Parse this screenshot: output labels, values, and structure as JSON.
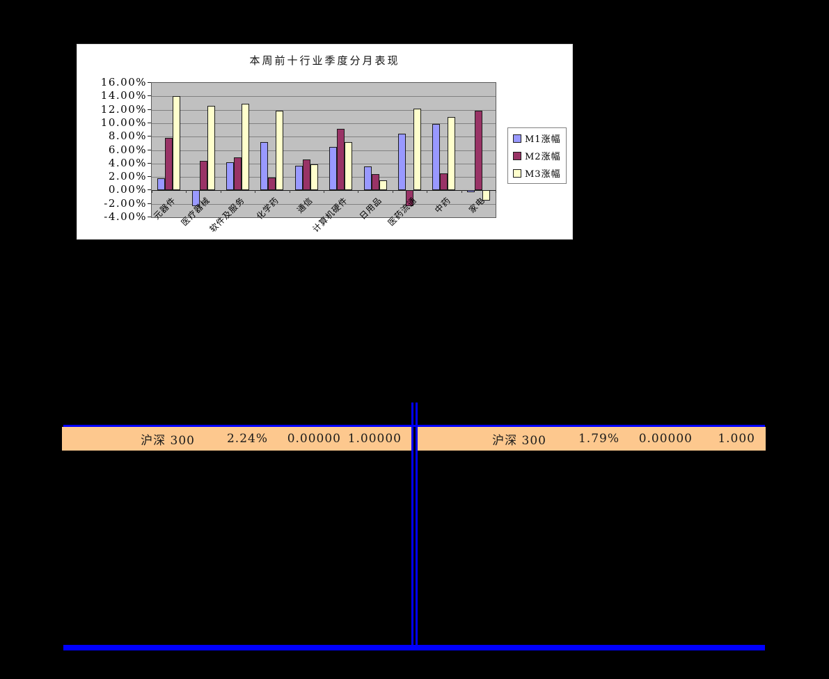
{
  "page": {
    "background": "#000000",
    "accent_blue": "#0000FE",
    "row_bg": "#FDC88E"
  },
  "chart_data": {
    "type": "bar",
    "title": "本周前十行业季度分月表现",
    "categories": [
      "元器件",
      "医疗器械",
      "软件及服务",
      "化学药",
      "通信",
      "计算机硬件",
      "日用品",
      "医药流通",
      "中药",
      "家电"
    ],
    "series": [
      {
        "name": "M1涨幅",
        "color": "#9999FF",
        "values": [
          1.8,
          -2.3,
          4.2,
          7.2,
          3.7,
          6.5,
          3.6,
          8.4,
          9.9,
          -0.3
        ]
      },
      {
        "name": "M2涨幅",
        "color": "#993366",
        "values": [
          7.8,
          4.4,
          4.9,
          1.9,
          4.6,
          9.2,
          2.4,
          -2.3,
          2.5,
          11.9
        ]
      },
      {
        "name": "M3涨幅",
        "color": "#FFFFCC",
        "values": [
          14.0,
          12.6,
          12.9,
          11.9,
          3.9,
          7.2,
          1.5,
          12.2,
          10.9,
          -1.5
        ]
      }
    ],
    "ylim": [
      -4,
      16
    ],
    "ytick_step": 2,
    "ytick_values": [
      16,
      14,
      12,
      10,
      8,
      6,
      4,
      2,
      0,
      -2,
      -4
    ],
    "ytick_labels": [
      "16.00%",
      "14.00%",
      "12.00%",
      "10.00%",
      "8.00%",
      "6.00%",
      "4.00%",
      "2.00%",
      "0.00%",
      "-2.00%",
      "-4.00%"
    ],
    "legend_position": "right",
    "grid": true,
    "plot_bg": "#C0C0C0"
  },
  "tables": {
    "left_row": {
      "cells": [
        "沪深 300",
        "2.24%",
        "0.00000",
        "1.00000"
      ]
    },
    "right_row": {
      "cells": [
        "沪深 300",
        "1.79%",
        "0.00000",
        "1.000"
      ]
    }
  }
}
